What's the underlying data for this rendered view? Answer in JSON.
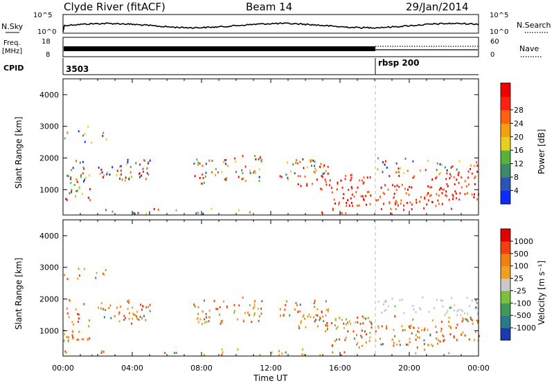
{
  "header": {
    "station": "Clyde River (fitACF)",
    "beam": "Beam 14",
    "date": "29/Jan/2014"
  },
  "noise_panel": {
    "left_label": "N.Sky",
    "right_label": "N.Search",
    "left_ticks": [
      "10^5",
      "10^0"
    ],
    "right_ticks": [
      "10^5",
      "10^0"
    ]
  },
  "freq_panel": {
    "left_label_1": "Freq.",
    "left_label_2": "[MHz]",
    "right_label": "Nave",
    "left_ticks": [
      "18",
      "8"
    ],
    "right_ticks": [
      "60",
      "0"
    ]
  },
  "cpid_panel": {
    "label": "CPID",
    "segments": [
      {
        "id": "3503",
        "start_hour": 0
      },
      {
        "id": "rbsp 200",
        "start_hour": 18
      }
    ]
  },
  "x_axis": {
    "label": "Time UT",
    "ticks": [
      "00:00",
      "04:00",
      "08:00",
      "12:00",
      "16:00",
      "20:00",
      "00:00"
    ]
  },
  "chart_data": [
    {
      "type": "heatmap",
      "name": "power",
      "ylabel": "Slant Range [km]",
      "ylim": [
        200,
        4500
      ],
      "yticks": [
        "1000",
        "2000",
        "3000",
        "4000"
      ],
      "xlim_hours": [
        0,
        24
      ],
      "colorbar": {
        "label": "Power [dB]",
        "ticks": [
          "4",
          "8",
          "12",
          "16",
          "20",
          "24",
          "28"
        ],
        "colors": [
          "#0b2bff",
          "#2a55b4",
          "#3d8a6a",
          "#5ab038",
          "#e8d020",
          "#f5a010",
          "#ff6010",
          "#ff2010",
          "#ee0000"
        ]
      }
    },
    {
      "type": "heatmap",
      "name": "velocity",
      "ylabel": "Slant Range [km]",
      "ylim": [
        200,
        4500
      ],
      "yticks": [
        "1000",
        "2000",
        "3000",
        "4000"
      ],
      "xlim_hours": [
        0,
        24
      ],
      "colorbar": {
        "label": "Velocity [m s⁻¹]",
        "ticks": [
          "1000",
          "500",
          "100",
          "25",
          "-25",
          "-100",
          "-500",
          "-1000"
        ],
        "colors": [
          "#1a3ab0",
          "#2b7a8a",
          "#3f9a5a",
          "#7cc040",
          "#c8c8c8",
          "#f0a020",
          "#f08010",
          "#f04010",
          "#e00000"
        ]
      }
    }
  ]
}
